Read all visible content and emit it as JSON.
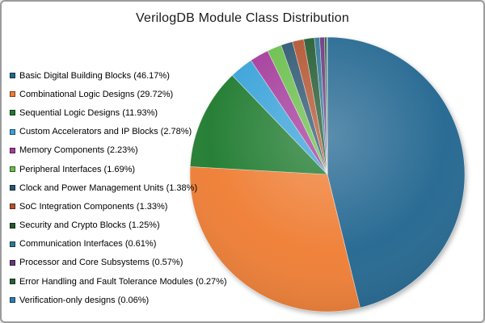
{
  "page": {
    "background": "#ffffff",
    "frame_border_color": "#9b9b9b"
  },
  "chart_data": {
    "type": "pie",
    "title": "VerilogDB Module Class Distribution",
    "legend_position": "left",
    "direction": "clockwise",
    "start_angle_deg": 0,
    "total_pct": 99.99,
    "slices": [
      {
        "label": "Basic Digital Building Blocks",
        "pct": 46.17,
        "color": "#226690",
        "legend_text": "Basic Digital Building Blocks (46.17%)"
      },
      {
        "label": "Combinational Logic Designs",
        "pct": 29.72,
        "color": "#EF7D33",
        "legend_text": "Combinational Logic Designs (29.72%)"
      },
      {
        "label": "Sequential Logic Designs",
        "pct": 11.93,
        "color": "#1F7B2F",
        "legend_text": "Sequential Logic Designs (11.93%)"
      },
      {
        "label": "Custom Accelerators and IP Blocks",
        "pct": 2.78,
        "color": "#38A2D9",
        "legend_text": "Custom Accelerators and IP Blocks (2.78%)"
      },
      {
        "label": "Memory Components",
        "pct": 2.23,
        "color": "#A43B9B",
        "legend_text": "Memory Components (2.23%)"
      },
      {
        "label": "Peripheral Interfaces",
        "pct": 1.69,
        "color": "#69BE4B",
        "legend_text": "Peripheral Interfaces (1.69%)"
      },
      {
        "label": "Clock and Power Management Units",
        "pct": 1.38,
        "color": "#2D5671",
        "legend_text": "Clock and Power Management Units (1.38%)"
      },
      {
        "label": "SoC Integration Components",
        "pct": 1.33,
        "color": "#B2532F",
        "legend_text": "SoC Integration Components (1.33%)"
      },
      {
        "label": "Security and Crypto Blocks",
        "pct": 1.25,
        "color": "#22592F",
        "legend_text": "Security and Crypto Blocks (1.25%)"
      },
      {
        "label": "Communication Interfaces",
        "pct": 0.61,
        "color": "#2D7795",
        "legend_text": "Communication Interfaces (0.61%)"
      },
      {
        "label": "Processor and Core Subsystems",
        "pct": 0.57,
        "color": "#693580",
        "legend_text": "Processor and Core Subsystems (0.57%)"
      },
      {
        "label": "Error Handling and Fault Tolerance Modules",
        "pct": 0.27,
        "color": "#2C6134",
        "legend_text": "Error Handling and Fault Tolerance Modules (0.27%)"
      },
      {
        "label": "Verification-only designs",
        "pct": 0.06,
        "color": "#2F7CB5",
        "legend_text": "Verification-only designs (0.06%)"
      }
    ]
  }
}
